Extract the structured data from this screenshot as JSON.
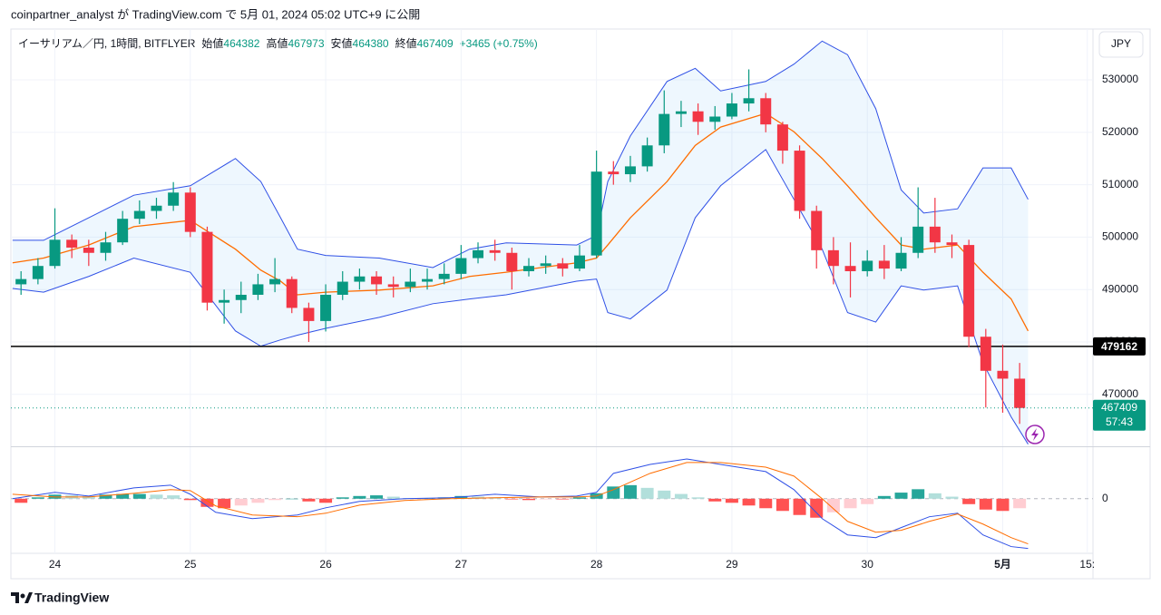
{
  "header": {
    "publisher": "coinpartner_analyst が TradingView.com で 5月 01, 2024 05:02 UTC+9 に公開"
  },
  "chart_data": {
    "type": "candlestick",
    "symbol": "イーサリアム／円, 1時間, BITFLYER",
    "ohlc_legend": [
      {
        "label": "始値",
        "value": 464382
      },
      {
        "label": "高値",
        "value": 467973
      },
      {
        "label": "安値",
        "value": 464380
      },
      {
        "label": "終値",
        "value": 467409
      }
    ],
    "change": "+3465 (+0.75%)",
    "currency": "JPY",
    "x": [
      -6,
      -3,
      0,
      3,
      6,
      9,
      12,
      15,
      18,
      21,
      24,
      27,
      30,
      33,
      36,
      39,
      42,
      45,
      48,
      51,
      54,
      57,
      60,
      63,
      66,
      69,
      72,
      75,
      78,
      81,
      84,
      87,
      90,
      93,
      96,
      99,
      102,
      105,
      108,
      111,
      114,
      117,
      120,
      123,
      126,
      129,
      132,
      135,
      138,
      141,
      144,
      147,
      150,
      153,
      156,
      159,
      162,
      165,
      168,
      171
    ],
    "open": [
      491000,
      492000,
      494500,
      499500,
      498000,
      497000,
      499000,
      503500,
      505000,
      506000,
      508500,
      501000,
      487500,
      488000,
      489000,
      491000,
      492000,
      486500,
      484000,
      489000,
      491500,
      492500,
      491000,
      490500,
      491500,
      492000,
      493000,
      496000,
      497500,
      497000,
      493500,
      494500,
      495000,
      494000,
      496500,
      512500,
      512000,
      513500,
      517500,
      523500,
      524000,
      522000,
      523000,
      525500,
      526500,
      521500,
      516500,
      505000,
      497500,
      494500,
      493500,
      495500,
      494000,
      497000,
      502000,
      499000,
      498500,
      481000,
      474500,
      473000
    ],
    "high": [
      493500,
      496000,
      505500,
      500500,
      499500,
      501000,
      505000,
      507000,
      507500,
      510500,
      509500,
      502000,
      490000,
      491500,
      493000,
      496000,
      492500,
      487500,
      491000,
      493500,
      494000,
      493500,
      492500,
      494000,
      494000,
      495000,
      498500,
      499000,
      499500,
      498000,
      496000,
      496500,
      496000,
      498500,
      516500,
      514500,
      515500,
      519000,
      528000,
      526000,
      525500,
      525000,
      527500,
      532000,
      527500,
      522000,
      517500,
      506000,
      500000,
      499000,
      497500,
      498500,
      500000,
      509500,
      507500,
      500500,
      499500,
      482500,
      479500,
      476000
    ],
    "low": [
      489000,
      491000,
      494000,
      496000,
      494500,
      495500,
      498500,
      502500,
      503500,
      505000,
      500000,
      486000,
      483500,
      485500,
      488000,
      489500,
      485500,
      480000,
      482000,
      488000,
      490000,
      489000,
      488500,
      489500,
      490000,
      491000,
      492000,
      495000,
      495500,
      490000,
      492500,
      493000,
      492500,
      493500,
      496000,
      510000,
      510500,
      512500,
      516000,
      521000,
      519500,
      520500,
      522500,
      524000,
      520000,
      514000,
      503500,
      494000,
      491000,
      488500,
      492500,
      492000,
      493500,
      496000,
      497000,
      496000,
      479000,
      467500,
      466500,
      464380
    ],
    "close": [
      492000,
      494500,
      499500,
      498000,
      497000,
      499000,
      503500,
      505000,
      506000,
      508500,
      501000,
      487500,
      488000,
      489000,
      491000,
      492000,
      486500,
      484000,
      489000,
      491500,
      492500,
      491000,
      490500,
      491500,
      492000,
      493000,
      496000,
      497500,
      497000,
      493500,
      494500,
      495000,
      494000,
      496500,
      512500,
      512000,
      513500,
      517500,
      523500,
      524000,
      522000,
      523000,
      525500,
      526500,
      521500,
      516500,
      505000,
      497500,
      494500,
      493500,
      495500,
      494000,
      497000,
      502000,
      499000,
      498500,
      481000,
      474500,
      473000,
      467409
    ],
    "up_color": "#089981",
    "down_color": "#f23645",
    "xlim": [
      -7.8,
      184
    ],
    "xticks": [
      {
        "value": 0,
        "label": "24"
      },
      {
        "value": 24,
        "label": "25"
      },
      {
        "value": 48,
        "label": "26"
      },
      {
        "value": 72,
        "label": "27"
      },
      {
        "value": 96,
        "label": "28"
      },
      {
        "value": 120,
        "label": "29"
      },
      {
        "value": 144,
        "label": "30"
      },
      {
        "value": 168,
        "label": "5月"
      },
      {
        "value": 183,
        "label": "15:"
      }
    ],
    "ylim": [
      460100,
      539700
    ],
    "yticks": [
      470000,
      480000,
      490000,
      500000,
      510000,
      520000,
      530000
    ],
    "grid": true,
    "bollinger": {
      "x": [
        -7.5,
        -2,
        6,
        14,
        24,
        32,
        36.5,
        40,
        43,
        48,
        57.5,
        67,
        73.5,
        80,
        92.5,
        96,
        98,
        102,
        108.5,
        113.5,
        118,
        126,
        131,
        136,
        140.5,
        145.5,
        150,
        154,
        160,
        164.5,
        169.5,
        172.5
      ],
      "upper": [
        499400,
        499400,
        503700,
        508000,
        509800,
        515000,
        510600,
        503700,
        497700,
        496500,
        496000,
        494200,
        497700,
        498900,
        498500,
        500300,
        510600,
        519300,
        529700,
        532200,
        527900,
        529700,
        533000,
        537400,
        534800,
        524500,
        509000,
        504600,
        505400,
        513200,
        513200,
        507200
      ],
      "middle": [
        495100,
        496000,
        498500,
        502000,
        503200,
        497700,
        493700,
        491600,
        489000,
        489500,
        489900,
        490700,
        492500,
        493300,
        495100,
        496000,
        498500,
        503700,
        510600,
        517500,
        521000,
        523600,
        520100,
        515000,
        509800,
        503700,
        498500,
        497700,
        498500,
        493300,
        488200,
        482100
      ],
      "lower": [
        490200,
        489500,
        492500,
        496000,
        493300,
        482100,
        479200,
        480400,
        481300,
        482600,
        484700,
        487300,
        488200,
        489000,
        491600,
        492000,
        485600,
        484400,
        489900,
        503700,
        509800,
        516700,
        507200,
        497700,
        485600,
        483800,
        490700,
        489900,
        490700,
        476000,
        465700,
        460500
      ],
      "band_color": "#2f50e6",
      "middle_color": "#ff6d00",
      "fill_color": "#2196f3"
    },
    "hline": {
      "value": 479162,
      "color": "#000000"
    },
    "countdown": "57:43",
    "macd": {
      "x": [
        -7.5,
        0,
        6,
        14,
        20.5,
        24,
        28.5,
        35,
        43,
        48,
        54,
        62,
        70,
        78,
        86,
        92.5,
        96,
        99,
        105.5,
        112,
        118,
        126,
        131,
        136,
        140.5,
        145.5,
        150,
        155,
        160,
        164.5,
        169.5,
        172.5
      ],
      "macd": [
        0,
        470,
        200,
        800,
        1000,
        330,
        -1000,
        -1470,
        -1200,
        -670,
        -200,
        0,
        70,
        330,
        130,
        200,
        470,
        1870,
        2530,
        2930,
        2530,
        2000,
        670,
        -1470,
        -2670,
        -2870,
        -2130,
        -1330,
        -1070,
        -2670,
        -3530,
        -3670
      ],
      "signal": [
        330,
        130,
        130,
        400,
        670,
        600,
        -530,
        -1200,
        -1330,
        -1070,
        -470,
        -130,
        0,
        70,
        130,
        130,
        200,
        670,
        1870,
        2670,
        2670,
        2330,
        1670,
        0,
        -1670,
        -2470,
        -2330,
        -1670,
        -1130,
        -1870,
        -2870,
        -3330
      ],
      "hist": [
        -300,
        100,
        300,
        250,
        200,
        300,
        350,
        350,
        300,
        250,
        -100,
        -600,
        -700,
        -500,
        -300,
        -100,
        0,
        -200,
        -300,
        100,
        200,
        250,
        150,
        50,
        50,
        100,
        200,
        150,
        100,
        -50,
        -100,
        -50,
        -50,
        100,
        400,
        900,
        1000,
        800,
        600,
        350,
        100,
        -200,
        -300,
        -500,
        -700,
        -900,
        -1200,
        -1400,
        -1000,
        -700,
        -400,
        200,
        450,
        700,
        400,
        150,
        -400,
        -800,
        -900,
        -700
      ],
      "hist_colors": [
        "#26a69a",
        "#b2dfdb",
        "#ff5252",
        "#ffcdd2"
      ],
      "ylim": [
        -5900,
        3800
      ],
      "yticks": [
        0
      ],
      "macd_color": "#2f50e6",
      "signal_color": "#ff6d00"
    }
  },
  "footer": {
    "brand": "TradingView"
  }
}
